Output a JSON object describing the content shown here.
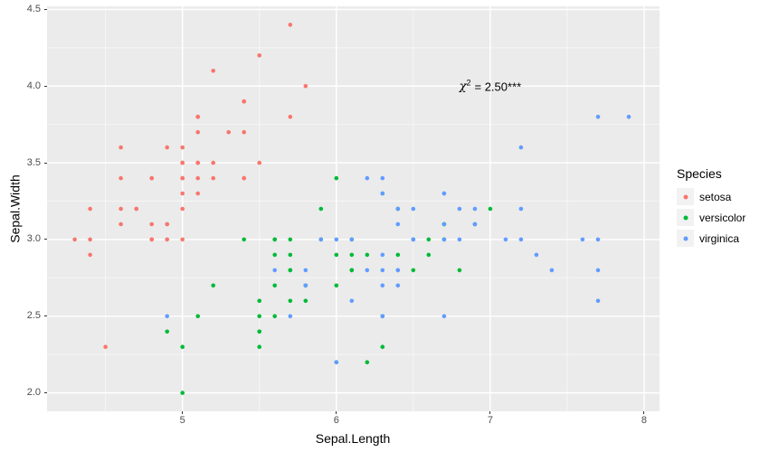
{
  "chart_data": {
    "type": "scatter",
    "title": "",
    "xlabel": "Sepal.Length",
    "ylabel": "Sepal.Width",
    "xlim": [
      4.12,
      8.1
    ],
    "ylim": [
      1.88,
      4.52
    ],
    "x_ticks": {
      "values": [
        5,
        6,
        7,
        8
      ],
      "labels": [
        "5",
        "6",
        "7",
        "8"
      ]
    },
    "y_ticks": {
      "values": [
        2.0,
        2.5,
        3.0,
        3.5,
        4.0,
        4.5
      ],
      "labels": [
        "2.0",
        "2.5",
        "3.0",
        "3.5",
        "4.0",
        "4.5"
      ]
    },
    "x_minor": [
      4.5,
      5.5,
      6.5,
      7.5
    ],
    "y_minor": [
      2.25,
      2.75,
      3.25,
      3.75,
      4.25
    ],
    "grid": true,
    "legend_position": "right",
    "colors": {
      "panel_bg": "#EBEBEB",
      "grid": "#FFFFFF",
      "tick_mark": "#333333",
      "tick_label": "#4D4D4D",
      "legend_key_bg": "#F2F2F2"
    },
    "annotation": {
      "symbol": "χ",
      "exponent": "2",
      "text": "= 2.50***",
      "x": 7.0,
      "y": 4.0
    },
    "legend": {
      "title": "Species"
    },
    "series": [
      {
        "name": "setosa",
        "color": "#F8766D",
        "points": [
          [
            5.1,
            3.5
          ],
          [
            4.9,
            3.0
          ],
          [
            4.7,
            3.2
          ],
          [
            4.6,
            3.1
          ],
          [
            5.0,
            3.6
          ],
          [
            5.4,
            3.9
          ],
          [
            4.6,
            3.4
          ],
          [
            5.0,
            3.4
          ],
          [
            4.4,
            2.9
          ],
          [
            4.9,
            3.1
          ],
          [
            5.4,
            3.7
          ],
          [
            4.8,
            3.4
          ],
          [
            4.8,
            3.0
          ],
          [
            4.3,
            3.0
          ],
          [
            5.8,
            4.0
          ],
          [
            5.7,
            4.4
          ],
          [
            5.4,
            3.9
          ],
          [
            5.1,
            3.5
          ],
          [
            5.7,
            3.8
          ],
          [
            5.1,
            3.8
          ],
          [
            5.4,
            3.4
          ],
          [
            5.1,
            3.7
          ],
          [
            4.6,
            3.6
          ],
          [
            5.1,
            3.3
          ],
          [
            4.8,
            3.4
          ],
          [
            5.0,
            3.0
          ],
          [
            5.0,
            3.4
          ],
          [
            5.2,
            3.5
          ],
          [
            5.2,
            3.4
          ],
          [
            4.7,
            3.2
          ],
          [
            4.8,
            3.1
          ],
          [
            5.4,
            3.4
          ],
          [
            5.2,
            4.1
          ],
          [
            5.5,
            4.2
          ],
          [
            4.9,
            3.1
          ],
          [
            5.0,
            3.2
          ],
          [
            5.5,
            3.5
          ],
          [
            4.9,
            3.6
          ],
          [
            4.4,
            3.0
          ],
          [
            5.1,
            3.4
          ],
          [
            5.0,
            3.5
          ],
          [
            4.5,
            2.3
          ],
          [
            4.4,
            3.2
          ],
          [
            5.0,
            3.5
          ],
          [
            5.1,
            3.8
          ],
          [
            4.8,
            3.0
          ],
          [
            5.1,
            3.8
          ],
          [
            4.6,
            3.2
          ],
          [
            5.3,
            3.7
          ],
          [
            5.0,
            3.3
          ]
        ]
      },
      {
        "name": "versicolor",
        "color": "#00BA38",
        "points": [
          [
            7.0,
            3.2
          ],
          [
            6.4,
            3.2
          ],
          [
            6.9,
            3.1
          ],
          [
            5.5,
            2.3
          ],
          [
            6.5,
            2.8
          ],
          [
            5.7,
            2.8
          ],
          [
            6.3,
            3.3
          ],
          [
            4.9,
            2.4
          ],
          [
            6.6,
            2.9
          ],
          [
            5.2,
            2.7
          ],
          [
            5.0,
            2.0
          ],
          [
            5.9,
            3.0
          ],
          [
            6.0,
            2.2
          ],
          [
            6.1,
            2.9
          ],
          [
            5.6,
            2.9
          ],
          [
            6.7,
            3.1
          ],
          [
            5.6,
            3.0
          ],
          [
            5.8,
            2.7
          ],
          [
            6.2,
            2.2
          ],
          [
            5.6,
            2.5
          ],
          [
            5.9,
            3.2
          ],
          [
            6.1,
            2.8
          ],
          [
            6.3,
            2.5
          ],
          [
            6.1,
            2.8
          ],
          [
            6.4,
            2.9
          ],
          [
            6.6,
            3.0
          ],
          [
            6.8,
            2.8
          ],
          [
            6.7,
            3.0
          ],
          [
            6.0,
            2.9
          ],
          [
            5.7,
            2.6
          ],
          [
            5.5,
            2.4
          ],
          [
            5.5,
            2.4
          ],
          [
            5.8,
            2.7
          ],
          [
            6.0,
            2.7
          ],
          [
            5.4,
            3.0
          ],
          [
            6.0,
            3.4
          ],
          [
            6.7,
            3.1
          ],
          [
            6.3,
            2.3
          ],
          [
            5.6,
            3.0
          ],
          [
            5.5,
            2.5
          ],
          [
            5.5,
            2.6
          ],
          [
            6.1,
            3.0
          ],
          [
            5.8,
            2.6
          ],
          [
            5.0,
            2.3
          ],
          [
            5.6,
            2.7
          ],
          [
            5.7,
            3.0
          ],
          [
            5.7,
            2.9
          ],
          [
            6.2,
            2.9
          ],
          [
            5.1,
            2.5
          ],
          [
            5.7,
            2.8
          ]
        ]
      },
      {
        "name": "virginica",
        "color": "#619CFF",
        "points": [
          [
            6.3,
            3.3
          ],
          [
            5.8,
            2.7
          ],
          [
            7.1,
            3.0
          ],
          [
            6.3,
            2.9
          ],
          [
            6.5,
            3.0
          ],
          [
            7.6,
            3.0
          ],
          [
            4.9,
            2.5
          ],
          [
            7.3,
            2.9
          ],
          [
            6.7,
            2.5
          ],
          [
            7.2,
            3.6
          ],
          [
            6.5,
            3.2
          ],
          [
            6.4,
            2.7
          ],
          [
            6.8,
            3.0
          ],
          [
            5.7,
            2.5
          ],
          [
            5.8,
            2.8
          ],
          [
            6.4,
            3.2
          ],
          [
            6.5,
            3.0
          ],
          [
            7.7,
            3.8
          ],
          [
            7.7,
            2.6
          ],
          [
            6.0,
            2.2
          ],
          [
            6.9,
            3.2
          ],
          [
            5.6,
            2.8
          ],
          [
            7.7,
            2.8
          ],
          [
            6.3,
            2.7
          ],
          [
            6.7,
            3.3
          ],
          [
            7.2,
            3.2
          ],
          [
            6.2,
            2.8
          ],
          [
            6.1,
            3.0
          ],
          [
            6.4,
            2.8
          ],
          [
            7.2,
            3.0
          ],
          [
            7.4,
            2.8
          ],
          [
            7.9,
            3.8
          ],
          [
            6.4,
            2.8
          ],
          [
            6.3,
            2.8
          ],
          [
            6.1,
            2.6
          ],
          [
            7.7,
            3.0
          ],
          [
            6.3,
            3.4
          ],
          [
            6.4,
            3.1
          ],
          [
            6.0,
            3.0
          ],
          [
            6.9,
            3.1
          ],
          [
            6.7,
            3.1
          ],
          [
            6.9,
            3.1
          ],
          [
            5.8,
            2.7
          ],
          [
            6.8,
            3.2
          ],
          [
            6.7,
            3.3
          ],
          [
            6.7,
            3.0
          ],
          [
            6.3,
            2.5
          ],
          [
            6.5,
            3.0
          ],
          [
            6.2,
            3.4
          ],
          [
            5.9,
            3.0
          ]
        ]
      }
    ]
  }
}
